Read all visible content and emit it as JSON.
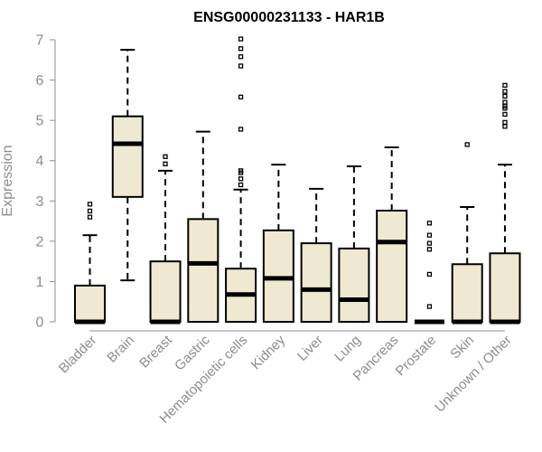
{
  "chart_data": {
    "type": "box",
    "title": "ENSG00000231133 - HAR1B",
    "xlabel": "",
    "ylabel": "Expression",
    "ylim": [
      0,
      7
    ],
    "yticks": [
      "0",
      "1",
      "2",
      "3",
      "4",
      "5",
      "6",
      "7"
    ],
    "box_fill": "#efe9d1",
    "box_stroke": "#000000",
    "categories": [
      "Bladder",
      "Brain",
      "Breast",
      "Gastric",
      "Hematopoietic cells",
      "Kidney",
      "Liver",
      "Lung",
      "Pancreas",
      "Prostate",
      "Skin",
      "Unknown / Other"
    ],
    "boxes": [
      {
        "min": 0,
        "q1": 0,
        "median": 0,
        "q3": 0.9,
        "max": 2.15,
        "outliers": [
          2.6,
          2.75,
          2.92
        ]
      },
      {
        "min": 1.03,
        "q1": 3.1,
        "median": 4.42,
        "q3": 5.1,
        "max": 6.75,
        "outliers": []
      },
      {
        "min": 0,
        "q1": 0,
        "median": 0,
        "q3": 1.5,
        "max": 3.75,
        "outliers": [
          3.92,
          4.1
        ]
      },
      {
        "min": 0,
        "q1": 0,
        "median": 1.45,
        "q3": 2.55,
        "max": 4.72,
        "outliers": []
      },
      {
        "min": 0,
        "q1": 0,
        "median": 0.68,
        "q3": 1.32,
        "max": 3.28,
        "outliers": [
          3.4,
          3.55,
          3.7,
          3.75,
          4.78,
          5.58,
          6.35,
          6.58,
          6.78,
          7.02
        ]
      },
      {
        "min": 0,
        "q1": 0,
        "median": 1.08,
        "q3": 2.27,
        "max": 3.9,
        "outliers": []
      },
      {
        "min": 0,
        "q1": 0,
        "median": 0.8,
        "q3": 1.95,
        "max": 3.3,
        "outliers": []
      },
      {
        "min": 0,
        "q1": 0,
        "median": 0.55,
        "q3": 1.82,
        "max": 3.86,
        "outliers": []
      },
      {
        "min": 0,
        "q1": 0,
        "median": 1.98,
        "q3": 2.76,
        "max": 4.33,
        "outliers": []
      },
      {
        "min": 0,
        "q1": 0,
        "median": 0,
        "q3": 0,
        "max": 0,
        "outliers": [
          0.38,
          1.18,
          1.8,
          1.95,
          2.15,
          2.45
        ]
      },
      {
        "min": 0,
        "q1": 0,
        "median": 0,
        "q3": 1.43,
        "max": 2.85,
        "outliers": [
          4.4
        ]
      },
      {
        "min": 0,
        "q1": 0,
        "median": 0,
        "q3": 1.7,
        "max": 3.9,
        "outliers": [
          4.85,
          4.95,
          5.15,
          5.3,
          5.35,
          5.45,
          5.6,
          5.72,
          5.87
        ]
      }
    ]
  }
}
